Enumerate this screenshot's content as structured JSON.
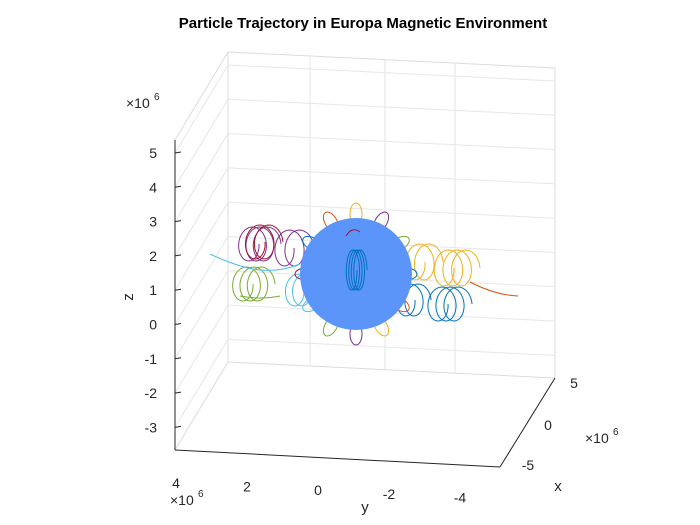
{
  "chart_data": {
    "type": "line3d",
    "title": "Particle Trajectory in Europa Magnetic Environment",
    "xlabel": "x",
    "ylabel": "y",
    "zlabel": "z",
    "x_ticks": [
      "5",
      "0",
      "-5"
    ],
    "y_ticks": [
      "4",
      "2",
      "0",
      "-2",
      "-4"
    ],
    "z_ticks": [
      "5",
      "4",
      "3",
      "2",
      "1",
      "0",
      "-1",
      "-2",
      "-3"
    ],
    "x_exponent": "×10",
    "y_exponent": "×10",
    "z_exponent": "×10",
    "exponent_power": "6",
    "sphere": {
      "name": "Europa",
      "radius": 1560000,
      "center": [
        0,
        0,
        1200000
      ],
      "color": "#5b95f9"
    },
    "trajectory_colors": [
      "#0072bd",
      "#d95319",
      "#edb120",
      "#7e2f8e",
      "#77ac30",
      "#4dbeee",
      "#a2142f"
    ],
    "grid": true
  }
}
